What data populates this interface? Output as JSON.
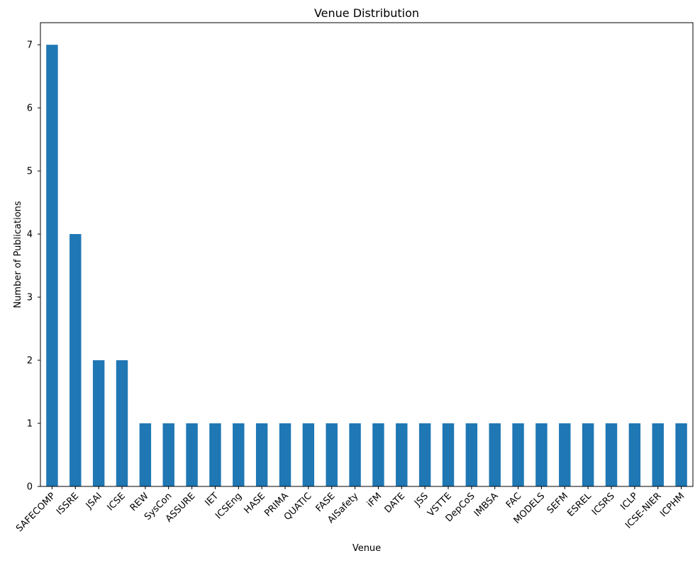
{
  "chart_data": {
    "type": "bar",
    "title": "Venue Distribution",
    "xlabel": "Venue",
    "ylabel": "Number of Publications",
    "categories": [
      "SAFECOMP",
      "ISSRE",
      "JSAI",
      "ICSE",
      "REW",
      "SysCon",
      "ASSURE",
      "IET",
      "ICSEng",
      "HASE",
      "PRIMA",
      "QUATIC",
      "FASE",
      "AISafety",
      "iFM",
      "DATE",
      "JSS",
      "VSTTE",
      "DepCoS",
      "IMBSA",
      "FAC",
      "MODELS",
      "SEFM",
      "ESREL",
      "ICSRS",
      "ICLP",
      "ICSE-NIER",
      "ICPHM"
    ],
    "values": [
      7,
      4,
      2,
      2,
      1,
      1,
      1,
      1,
      1,
      1,
      1,
      1,
      1,
      1,
      1,
      1,
      1,
      1,
      1,
      1,
      1,
      1,
      1,
      1,
      1,
      1,
      1,
      1
    ],
    "yticks": [
      "0",
      "1",
      "2",
      "3",
      "4",
      "5",
      "6",
      "7"
    ],
    "ylim": [
      0,
      7.35
    ],
    "grid": false,
    "legend": false,
    "bar_color": "#1f77b4"
  }
}
